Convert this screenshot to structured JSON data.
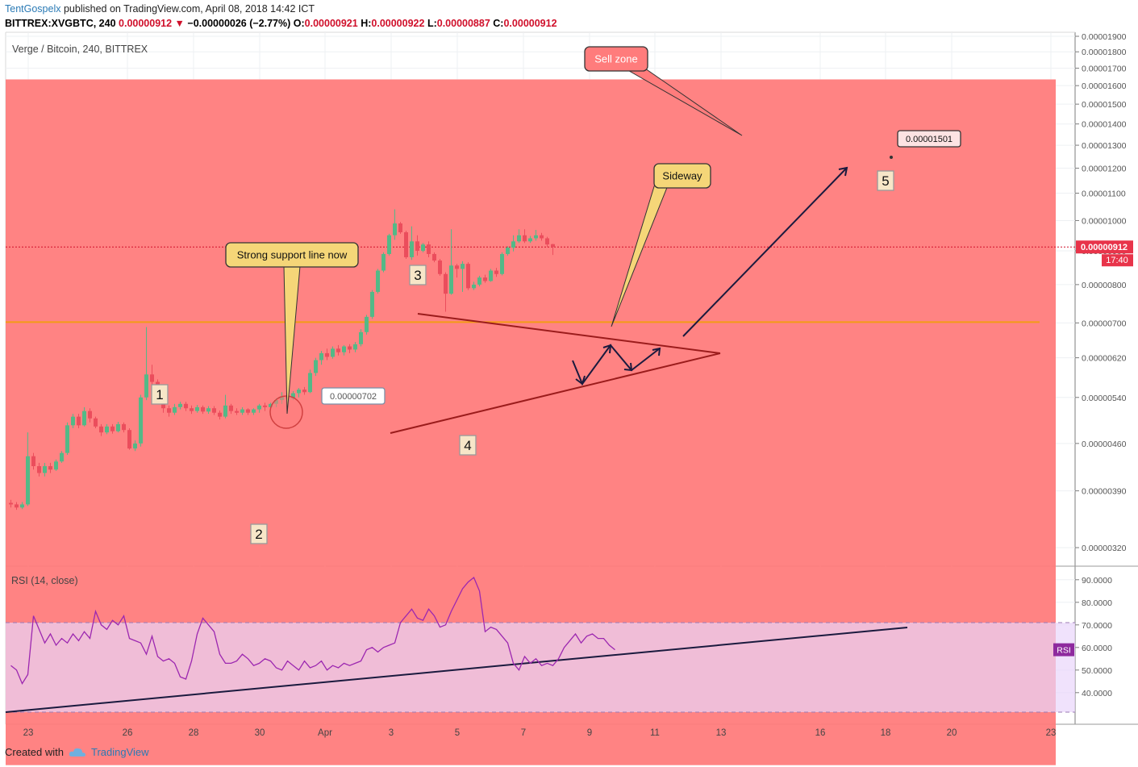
{
  "header": {
    "author": "TentGospelx",
    "published": "published on TradingView.com, April 08, 2018 14:42 ICT",
    "symbol": "BITTREX:XVGBTC, 240",
    "last": "0.00000912",
    "arrow": "▼",
    "change": "−0.00000026 (−2.77%)",
    "o_label": "O:",
    "o": "0.00000921",
    "h_label": "H:",
    "h": "0.00000922",
    "l_label": "L:",
    "l": "0.00000887",
    "c_label": "C:",
    "c": "0.00000912"
  },
  "footer": {
    "created_with": "Created with",
    "brand": "TradingView"
  },
  "chart_data": {
    "type": "candlestick",
    "title": "Verge / Bitcoin, 240, BITTREX",
    "y_axis": {
      "scale": "log",
      "ticks": [
        "0.00001900",
        "0.00001800",
        "0.00001700",
        "0.00001600",
        "0.00001500",
        "0.00001400",
        "0.00001300",
        "0.00001200",
        "0.00001100",
        "0.00001000",
        "0.00000900",
        "0.00000800",
        "0.00000700",
        "0.00000620",
        "0.00000540",
        "0.00000460",
        "0.00000390",
        "0.00000320"
      ],
      "current_price_label": "0.00000912",
      "countdown_label": "17:40"
    },
    "x_axis": {
      "ticks": [
        "23",
        "26",
        "28",
        "30",
        "Apr",
        "3",
        "5",
        "7",
        "9",
        "11",
        "13",
        "16",
        "18",
        "20",
        "23"
      ]
    },
    "candles": [
      [
        1,
        3.74e-06,
        3.72e-06,
        3.78e-06,
        3.68e-06
      ],
      [
        2,
        3.72e-06,
        3.68e-06,
        3.75e-06,
        3.65e-06
      ],
      [
        3,
        3.68e-06,
        3.72e-06,
        3.75e-06,
        3.66e-06
      ],
      [
        4,
        3.72e-06,
        4.4e-06,
        4.78e-06,
        3.7e-06
      ],
      [
        5,
        4.4e-06,
        4.25e-06,
        4.45e-06,
        4.2e-06
      ],
      [
        6,
        4.25e-06,
        4.15e-06,
        4.3e-06,
        4.1e-06
      ],
      [
        7,
        4.15e-06,
        4.25e-06,
        4.3e-06,
        4.1e-06
      ],
      [
        8,
        4.25e-06,
        4.2e-06,
        4.3e-06,
        4.15e-06
      ],
      [
        9,
        4.2e-06,
        4.32e-06,
        4.35e-06,
        4.18e-06
      ],
      [
        10,
        4.32e-06,
        4.45e-06,
        4.48e-06,
        4.3e-06
      ],
      [
        11,
        4.45e-06,
        4.9e-06,
        4.95e-06,
        4.42e-06
      ],
      [
        12,
        4.9e-06,
        5.05e-06,
        5.1e-06,
        4.85e-06
      ],
      [
        13,
        5.05e-06,
        4.9e-06,
        5.1e-06,
        4.85e-06
      ],
      [
        14,
        4.9e-06,
        5.15e-06,
        5.22e-06,
        4.88e-06
      ],
      [
        15,
        5.15e-06,
        5.02e-06,
        5.2e-06,
        4.95e-06
      ],
      [
        16,
        5.02e-06,
        4.88e-06,
        5.05e-06,
        4.85e-06
      ],
      [
        17,
        4.88e-06,
        4.78e-06,
        4.92e-06,
        4.72e-06
      ],
      [
        18,
        4.78e-06,
        4.88e-06,
        4.92e-06,
        4.75e-06
      ],
      [
        19,
        4.88e-06,
        4.8e-06,
        4.92e-06,
        4.76e-06
      ],
      [
        20,
        4.8e-06,
        4.92e-06,
        4.96e-06,
        4.78e-06
      ],
      [
        21,
        4.92e-06,
        4.82e-06,
        4.95e-06,
        4.78e-06
      ],
      [
        22,
        4.82e-06,
        4.52e-06,
        4.85e-06,
        4.5e-06
      ],
      [
        23,
        4.52e-06,
        4.6e-06,
        4.65e-06,
        4.48e-06
      ],
      [
        24,
        4.6e-06,
        5.4e-06,
        5.45e-06,
        4.55e-06
      ],
      [
        25,
        5.4e-06,
        5.85e-06,
        6.9e-06,
        5.35e-06
      ],
      [
        26,
        5.85e-06,
        5.7e-06,
        6.05e-06,
        5.55e-06
      ],
      [
        27,
        5.7e-06,
        5.45e-06,
        5.75e-06,
        5.4e-06
      ],
      [
        28,
        5.45e-06,
        5.2e-06,
        5.5e-06,
        5.12e-06
      ],
      [
        29,
        5.2e-06,
        5.12e-06,
        5.25e-06,
        5.05e-06
      ],
      [
        30,
        5.12e-06,
        5.22e-06,
        5.28e-06,
        5.08e-06
      ],
      [
        31,
        5.22e-06,
        5.28e-06,
        5.32e-06,
        5.18e-06
      ],
      [
        32,
        5.28e-06,
        5.2e-06,
        5.32e-06,
        5.15e-06
      ],
      [
        33,
        5.2e-06,
        5.15e-06,
        5.25e-06,
        5.1e-06
      ],
      [
        34,
        5.15e-06,
        5.22e-06,
        5.26e-06,
        5.12e-06
      ],
      [
        35,
        5.22e-06,
        5.14e-06,
        5.25e-06,
        5.1e-06
      ],
      [
        36,
        5.14e-06,
        5.2e-06,
        5.24e-06,
        5.1e-06
      ],
      [
        37,
        5.2e-06,
        5.12e-06,
        5.24e-06,
        5.08e-06
      ],
      [
        38,
        5.12e-06,
        5.05e-06,
        5.16e-06,
        5e-06
      ],
      [
        39,
        5.05e-06,
        5.25e-06,
        5.45e-06,
        5.02e-06
      ],
      [
        40,
        5.25e-06,
        5.15e-06,
        5.28e-06,
        5.1e-06
      ],
      [
        41,
        5.15e-06,
        5.12e-06,
        5.2e-06,
        5.08e-06
      ],
      [
        42,
        5.12e-06,
        5.18e-06,
        5.22e-06,
        5.08e-06
      ],
      [
        43,
        5.18e-06,
        5.12e-06,
        5.2e-06,
        5.08e-06
      ],
      [
        44,
        5.12e-06,
        5.18e-06,
        5.2e-06,
        5.08e-06
      ],
      [
        45,
        5.18e-06,
        5.25e-06,
        5.28e-06,
        5.12e-06
      ],
      [
        46,
        5.25e-06,
        5.22e-06,
        5.3e-06,
        5.15e-06
      ],
      [
        47,
        5.22e-06,
        5.28e-06,
        5.3e-06,
        5.18e-06
      ],
      [
        48,
        5.28e-06,
        5.35e-06,
        5.38e-06,
        5.22e-06
      ],
      [
        49,
        5.35e-06,
        5.42e-06,
        5.5e-06,
        5.28e-06
      ],
      [
        50,
        5.42e-06,
        5.38e-06,
        5.48e-06,
        5.35e-06
      ],
      [
        51,
        5.38e-06,
        5.48e-06,
        5.52e-06,
        5.35e-06
      ],
      [
        52,
        5.48e-06,
        5.55e-06,
        5.58e-06,
        5.4e-06
      ],
      [
        53,
        5.55e-06,
        5.5e-06,
        5.6e-06,
        5.45e-06
      ],
      [
        54,
        5.5e-06,
        5.88e-06,
        5.95e-06,
        5.48e-06
      ],
      [
        55,
        5.88e-06,
        6.15e-06,
        6.2e-06,
        5.82e-06
      ],
      [
        56,
        6.15e-06,
        6.3e-06,
        6.35e-06,
        6.05e-06
      ],
      [
        57,
        6.3e-06,
        6.22e-06,
        6.4e-06,
        6.15e-06
      ],
      [
        58,
        6.22e-06,
        6.4e-06,
        6.45e-06,
        6.18e-06
      ],
      [
        59,
        6.4e-06,
        6.32e-06,
        6.48e-06,
        6.25e-06
      ],
      [
        60,
        6.32e-06,
        6.45e-06,
        6.48e-06,
        6.25e-06
      ],
      [
        61,
        6.45e-06,
        6.38e-06,
        6.5e-06,
        6.3e-06
      ],
      [
        62,
        6.38e-06,
        6.5e-06,
        6.55e-06,
        6.32e-06
      ],
      [
        63,
        6.5e-06,
        6.78e-06,
        6.85e-06,
        6.45e-06
      ],
      [
        64,
        6.78e-06,
        7.15e-06,
        7.2e-06,
        6.72e-06
      ],
      [
        65,
        7.15e-06,
        7.8e-06,
        7.85e-06,
        7.1e-06
      ],
      [
        66,
        7.8e-06,
        8.4e-06,
        8.45e-06,
        7.75e-06
      ],
      [
        67,
        8.4e-06,
        8.9e-06,
        8.95e-06,
        8.35e-06
      ],
      [
        68,
        8.9e-06,
        9.5e-06,
        9.55e-06,
        8.85e-06
      ],
      [
        69,
        9.5e-06,
        9.9e-06,
        1.04e-05,
        9.35e-06
      ],
      [
        70,
        9.9e-06,
        9.6e-06,
        9.95e-06,
        9.55e-06
      ],
      [
        71,
        9.6e-06,
        8.8e-06,
        9.65e-06,
        8.75e-06
      ],
      [
        72,
        8.8e-06,
        9.3e-06,
        9.8e-06,
        8.72e-06
      ],
      [
        73,
        9.3e-06,
        9e-06,
        9.5e-06,
        8.85e-06
      ],
      [
        74,
        9e-06,
        9.2e-06,
        9.25e-06,
        8.95e-06
      ],
      [
        75,
        9.2e-06,
        8.9e-06,
        9.3e-06,
        8.8e-06
      ],
      [
        76,
        8.9e-06,
        8.7e-06,
        8.95e-06,
        8.65e-06
      ],
      [
        77,
        8.7e-06,
        8.3e-06,
        8.75e-06,
        8.25e-06
      ],
      [
        78,
        8.3e-06,
        7.75e-06,
        8.35e-06,
        7.28e-06
      ],
      [
        79,
        7.75e-06,
        8.55e-06,
        9.7e-06,
        7.72e-06
      ],
      [
        80,
        8.55e-06,
        8.45e-06,
        8.6e-06,
        8.2e-06
      ],
      [
        81,
        8.45e-06,
        8.6e-06,
        8.68e-06,
        7.8e-06
      ],
      [
        82,
        8.6e-06,
        7.9e-06,
        8.65e-06,
        7.85e-06
      ],
      [
        83,
        7.9e-06,
        8e-06,
        8.08e-06,
        7.85e-06
      ],
      [
        84,
        8e-06,
        8.2e-06,
        8.25e-06,
        7.95e-06
      ],
      [
        85,
        8.2e-06,
        8.1e-06,
        8.28e-06,
        8.05e-06
      ],
      [
        86,
        8.1e-06,
        8.4e-06,
        8.45e-06,
        8.08e-06
      ],
      [
        87,
        8.4e-06,
        8.3e-06,
        8.48e-06,
        8.22e-06
      ],
      [
        88,
        8.3e-06,
        8.9e-06,
        8.95e-06,
        8.26e-06
      ],
      [
        89,
        8.9e-06,
        9.1e-06,
        9.15e-06,
        8.85e-06
      ],
      [
        90,
        9.1e-06,
        9.3e-06,
        9.5e-06,
        8.98e-06
      ],
      [
        91,
        9.3e-06,
        9.5e-06,
        9.7e-06,
        9.25e-06
      ],
      [
        92,
        9.5e-06,
        9.3e-06,
        9.7e-06,
        9.25e-06
      ],
      [
        93,
        9.3e-06,
        9.4e-06,
        9.48e-06,
        9.25e-06
      ],
      [
        94,
        9.4e-06,
        9.5e-06,
        9.68e-06,
        9.32e-06
      ],
      [
        95,
        9.5e-06,
        9.4e-06,
        9.58e-06,
        9.32e-06
      ],
      [
        96,
        9.4e-06,
        9.2e-06,
        9.45e-06,
        9.12e-06
      ],
      [
        97,
        9.21e-06,
        9.12e-06,
        9.22e-06,
        8.87e-06
      ]
    ],
    "horizontal_line": {
      "value": 7.02e-06,
      "label": "0.00000702"
    },
    "sell_zone": {
      "from": 1.5e-06,
      "to": 1.635e-05
    },
    "target": {
      "value": 1.501e-05,
      "label": "0.00001501"
    },
    "wave_labels": [
      "1",
      "2",
      "3",
      "4",
      "5"
    ],
    "callouts": [
      "Strong support line now",
      "Sideway",
      "Sell zone"
    ],
    "rsi": {
      "title": "RSI (14, close)",
      "tag": "RSI",
      "ticks": [
        "90.0000",
        "80.0000",
        "70.0000",
        "60.0000",
        "50.0000",
        "40.0000"
      ],
      "band": [
        30,
        70
      ],
      "values": [
        [
          1,
          52
        ],
        [
          2,
          50
        ],
        [
          3,
          44
        ],
        [
          4,
          48
        ],
        [
          5,
          74
        ],
        [
          6,
          68
        ],
        [
          7,
          62
        ],
        [
          8,
          66
        ],
        [
          9,
          61
        ],
        [
          10,
          64
        ],
        [
          11,
          62
        ],
        [
          12,
          66
        ],
        [
          13,
          63
        ],
        [
          14,
          67
        ],
        [
          15,
          64
        ],
        [
          16,
          76
        ],
        [
          17,
          70
        ],
        [
          18,
          68
        ],
        [
          19,
          72
        ],
        [
          20,
          70
        ],
        [
          21,
          74
        ],
        [
          22,
          64
        ],
        [
          23,
          63
        ],
        [
          24,
          62
        ],
        [
          25,
          57
        ],
        [
          26,
          65
        ],
        [
          27,
          56
        ],
        [
          28,
          54
        ],
        [
          29,
          55
        ],
        [
          30,
          53
        ],
        [
          31,
          47
        ],
        [
          32,
          46
        ],
        [
          33,
          54
        ],
        [
          34,
          66
        ],
        [
          35,
          73
        ],
        [
          36,
          70
        ],
        [
          37,
          67
        ],
        [
          38,
          57
        ],
        [
          39,
          53
        ],
        [
          40,
          53
        ],
        [
          41,
          54
        ],
        [
          42,
          57
        ],
        [
          43,
          55
        ],
        [
          44,
          52
        ],
        [
          45,
          53
        ],
        [
          46,
          55
        ],
        [
          47,
          54
        ],
        [
          48,
          51
        ],
        [
          49,
          50
        ],
        [
          50,
          54
        ],
        [
          51,
          52
        ],
        [
          52,
          50
        ],
        [
          53,
          54
        ],
        [
          54,
          51
        ],
        [
          55,
          52
        ],
        [
          56,
          54
        ],
        [
          57,
          50
        ],
        [
          58,
          52
        ],
        [
          59,
          51
        ],
        [
          60,
          53
        ],
        [
          61,
          52
        ],
        [
          62,
          53
        ],
        [
          63,
          54
        ],
        [
          64,
          59
        ],
        [
          65,
          60
        ],
        [
          66,
          58
        ],
        [
          67,
          60
        ],
        [
          68,
          61
        ],
        [
          69,
          62
        ],
        [
          70,
          71
        ],
        [
          71,
          74
        ],
        [
          72,
          77
        ],
        [
          73,
          73
        ],
        [
          74,
          72
        ],
        [
          75,
          77
        ],
        [
          76,
          74
        ],
        [
          77,
          69
        ],
        [
          78,
          70
        ],
        [
          79,
          76
        ],
        [
          80,
          81
        ],
        [
          81,
          86
        ],
        [
          82,
          89
        ],
        [
          83,
          91
        ],
        [
          84,
          85
        ],
        [
          85,
          67
        ],
        [
          86,
          69
        ],
        [
          87,
          68
        ],
        [
          88,
          65
        ],
        [
          89,
          62
        ],
        [
          90,
          53
        ],
        [
          91,
          50
        ],
        [
          92,
          56
        ],
        [
          93,
          53
        ],
        [
          94,
          55
        ],
        [
          95,
          52
        ],
        [
          96,
          53
        ],
        [
          97,
          52
        ],
        [
          98,
          55
        ],
        [
          99,
          60
        ],
        [
          100,
          63
        ],
        [
          101,
          66
        ],
        [
          102,
          62
        ],
        [
          103,
          65
        ],
        [
          104,
          66
        ],
        [
          105,
          64
        ],
        [
          106,
          64
        ],
        [
          107,
          61
        ],
        [
          108,
          59
        ]
      ],
      "trendline": [
        [
          0,
          31
        ],
        [
          137,
          68
        ]
      ]
    }
  }
}
